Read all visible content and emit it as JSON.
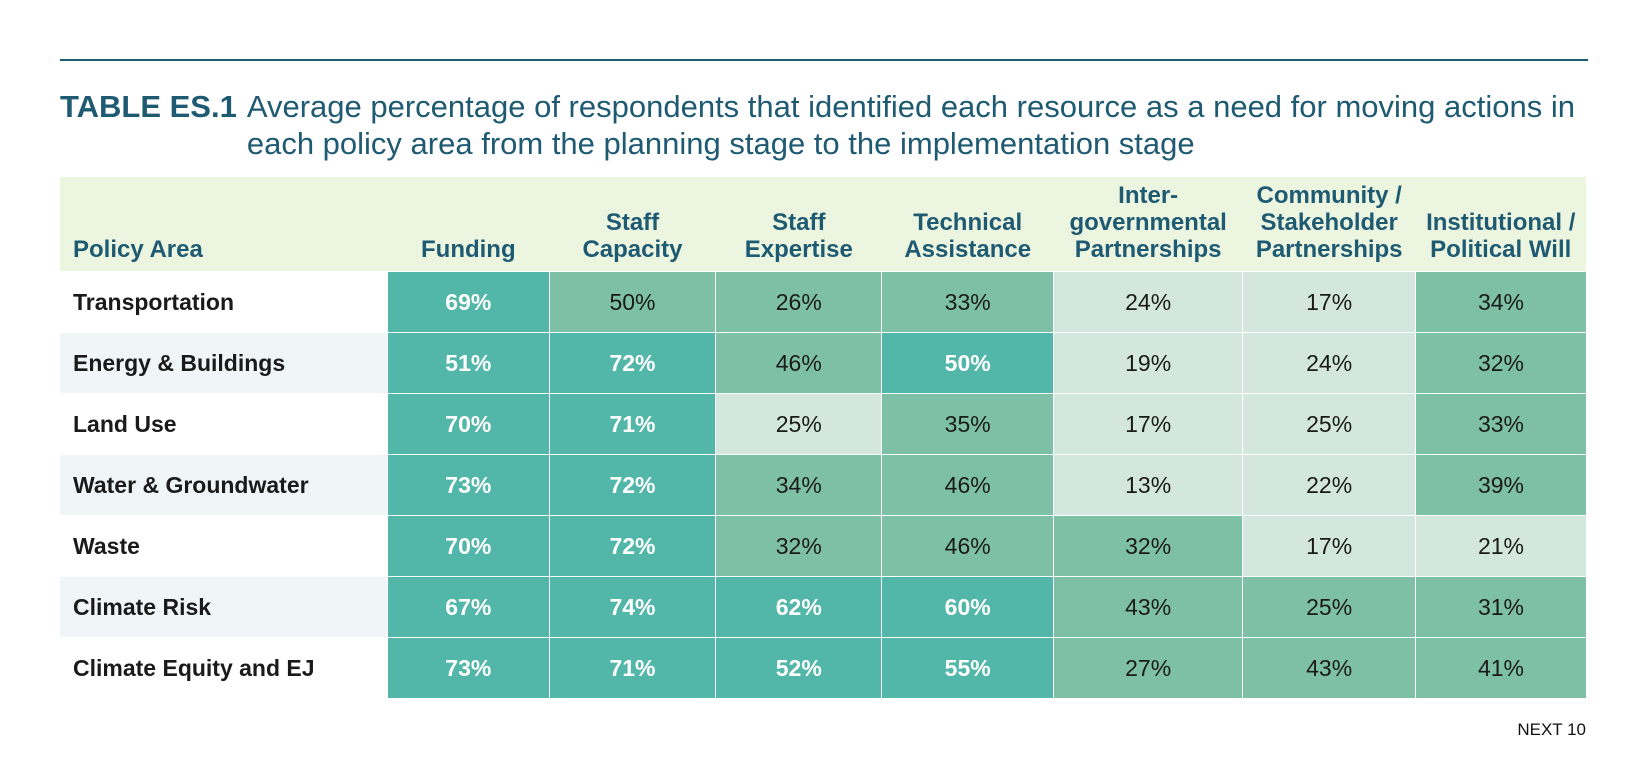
{
  "caption": {
    "label": "TABLE ES.1",
    "text": "Average percentage of respondents that identified each resource as a need for moving actions in each policy area from the planning stage to the implementation stage"
  },
  "table": {
    "headers": [
      "Policy Area",
      "Funding",
      "Staff Capacity",
      "Staff Expertise",
      "Technical Assistance",
      "Inter-governmental Partnerships",
      "Community / Stakeholder Partnerships",
      "Institutional / Political Will"
    ],
    "rows": [
      {
        "label": "Transportation",
        "values": [
          "69%",
          "50%",
          "26%",
          "33%",
          "24%",
          "17%",
          "34%"
        ]
      },
      {
        "label": "Energy & Buildings",
        "values": [
          "51%",
          "72%",
          "46%",
          "50%",
          "19%",
          "24%",
          "32%"
        ]
      },
      {
        "label": "Land Use",
        "values": [
          "70%",
          "71%",
          "25%",
          "35%",
          "17%",
          "25%",
          "33%"
        ]
      },
      {
        "label": "Water & Groundwater",
        "values": [
          "73%",
          "72%",
          "34%",
          "46%",
          "13%",
          "22%",
          "39%"
        ]
      },
      {
        "label": "Waste",
        "values": [
          "70%",
          "72%",
          "32%",
          "46%",
          "32%",
          "17%",
          "21%"
        ]
      },
      {
        "label": "Climate Risk",
        "values": [
          "67%",
          "74%",
          "62%",
          "60%",
          "43%",
          "25%",
          "31%"
        ]
      },
      {
        "label": "Climate Equity and EJ",
        "values": [
          "73%",
          "71%",
          "52%",
          "55%",
          "27%",
          "43%",
          "41%"
        ]
      }
    ]
  },
  "footer": "NEXT 10",
  "colors": {
    "dark": "#52b6a8",
    "medium": "#7ec0a6",
    "light": "#d3e7de",
    "header_bg": "#ecf5df",
    "title": "#1f5a73"
  }
}
